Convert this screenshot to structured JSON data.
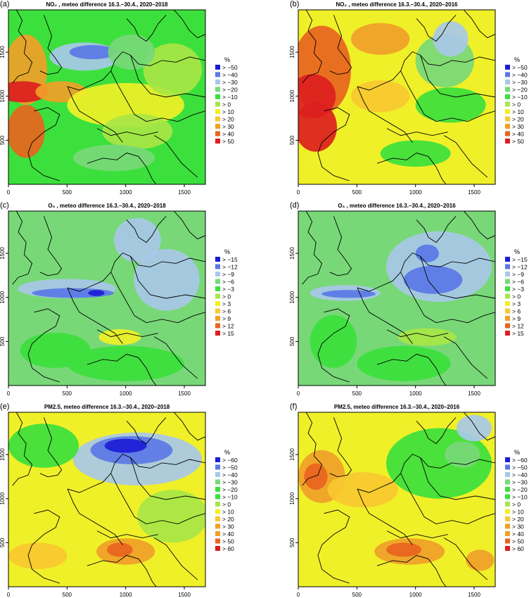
{
  "colors": {
    "neg4": "#1c1cd6",
    "neg3": "#5a78e6",
    "neg2": "#a8c8e8",
    "neg1": "#78d878",
    "neg0": "#3ce03c",
    "pos0": "#a8e646",
    "pos1": "#f0f028",
    "pos2": "#f8c830",
    "pos3": "#f0a028",
    "pos4": "#e86420",
    "pos5": "#dc1e1e",
    "coast": "#000000",
    "frame": "#000000"
  },
  "chart_data": [
    {
      "type": "heatmap",
      "panel": "(a)",
      "title": "NO₂ , meteo difference 16.3.–30.4., 2020–2018",
      "x_ticks": [
        "0",
        "500",
        "1000",
        "1500"
      ],
      "y_ticks": [
        "500",
        "1000",
        "1500"
      ],
      "xlim": [
        0,
        1680
      ],
      "ylim": [
        0,
        1980
      ],
      "legend_title": "%",
      "legend_labels": [
        "> −50",
        "> −40",
        "> −30",
        "> −20",
        "> −10",
        "> 0",
        "> 10",
        "> 20",
        "> 30",
        "> 40",
        "> 50"
      ],
      "legend_colors": [
        "neg4",
        "neg3",
        "neg2",
        "neg1",
        "neg0",
        "pos0",
        "pos1",
        "pos2",
        "pos3",
        "pos4",
        "pos5"
      ],
      "base_color": "neg0",
      "regions": [
        {
          "x": 150,
          "y": 1300,
          "rx": 180,
          "ry": 400,
          "c": "pos3"
        },
        {
          "x": 120,
          "y": 1050,
          "rx": 220,
          "ry": 120,
          "c": "pos5"
        },
        {
          "x": 150,
          "y": 600,
          "rx": 160,
          "ry": 300,
          "c": "pos4"
        },
        {
          "x": 650,
          "y": 1450,
          "rx": 300,
          "ry": 160,
          "c": "neg2"
        },
        {
          "x": 720,
          "y": 1500,
          "rx": 200,
          "ry": 80,
          "c": "neg3"
        },
        {
          "x": 450,
          "y": 1050,
          "rx": 220,
          "ry": 120,
          "c": "pos3"
        },
        {
          "x": 1000,
          "y": 900,
          "rx": 500,
          "ry": 250,
          "c": "pos1"
        },
        {
          "x": 1100,
          "y": 600,
          "rx": 300,
          "ry": 200,
          "c": "pos0"
        },
        {
          "x": 1400,
          "y": 1300,
          "rx": 250,
          "ry": 300,
          "c": "pos0"
        },
        {
          "x": 1050,
          "y": 1500,
          "rx": 200,
          "ry": 200,
          "c": "neg1"
        },
        {
          "x": 900,
          "y": 300,
          "rx": 350,
          "ry": 150,
          "c": "neg1"
        }
      ]
    },
    {
      "type": "heatmap",
      "panel": "(b)",
      "title": "NO₂ , meteo difference 16.3.–30.4., 2020–2016",
      "x_ticks": [
        "0",
        "500",
        "1000",
        "1500"
      ],
      "y_ticks": [
        "500",
        "1000",
        "1500"
      ],
      "xlim": [
        0,
        1680
      ],
      "ylim": [
        0,
        1980
      ],
      "legend_title": "%",
      "legend_labels": [
        "> −50",
        "> −40",
        "> −30",
        "> −20",
        "> −10",
        "> 0",
        "> 10",
        "> 20",
        "> 30",
        "> 40",
        "> 50"
      ],
      "legend_colors": [
        "neg4",
        "neg3",
        "neg2",
        "neg1",
        "neg0",
        "pos0",
        "pos1",
        "pos2",
        "pos3",
        "pos4",
        "pos5"
      ],
      "base_color": "pos1",
      "regions": [
        {
          "x": 200,
          "y": 1300,
          "rx": 250,
          "ry": 500,
          "c": "pos4"
        },
        {
          "x": 120,
          "y": 1000,
          "rx": 200,
          "ry": 250,
          "c": "pos5"
        },
        {
          "x": 150,
          "y": 650,
          "rx": 180,
          "ry": 280,
          "c": "pos5"
        },
        {
          "x": 700,
          "y": 1650,
          "rx": 250,
          "ry": 180,
          "c": "pos3"
        },
        {
          "x": 1250,
          "y": 1400,
          "rx": 250,
          "ry": 300,
          "c": "neg1"
        },
        {
          "x": 1300,
          "y": 1650,
          "rx": 150,
          "ry": 200,
          "c": "neg2"
        },
        {
          "x": 1300,
          "y": 900,
          "rx": 300,
          "ry": 200,
          "c": "neg0"
        },
        {
          "x": 700,
          "y": 1000,
          "rx": 250,
          "ry": 180,
          "c": "pos2"
        },
        {
          "x": 1000,
          "y": 350,
          "rx": 300,
          "ry": 150,
          "c": "neg0"
        }
      ]
    },
    {
      "type": "heatmap",
      "panel": "(c)",
      "title": "O₃ , meteo difference 16.3.–30.4., 2020–2018",
      "x_ticks": [
        "0",
        "500",
        "1000",
        "1500"
      ],
      "y_ticks": [
        "500",
        "1000",
        "1500"
      ],
      "xlim": [
        0,
        1680
      ],
      "ylim": [
        0,
        1980
      ],
      "legend_title": "%",
      "legend_labels": [
        "> −15",
        "> −12",
        "> −9",
        "> −6",
        "> −3",
        "> 0",
        "> 3",
        "> 6",
        "> 9",
        "> 12",
        "> 15"
      ],
      "legend_colors": [
        "neg4",
        "neg3",
        "neg2",
        "neg1",
        "neg0",
        "pos0",
        "pos1",
        "pos2",
        "pos3",
        "pos4",
        "pos5"
      ],
      "base_color": "neg1",
      "regions": [
        {
          "x": 500,
          "y": 1100,
          "rx": 420,
          "ry": 110,
          "c": "neg2"
        },
        {
          "x": 550,
          "y": 1050,
          "rx": 350,
          "ry": 55,
          "c": "neg3"
        },
        {
          "x": 750,
          "y": 1050,
          "rx": 70,
          "ry": 35,
          "c": "neg4"
        },
        {
          "x": 1350,
          "y": 1200,
          "rx": 280,
          "ry": 350,
          "c": "neg2"
        },
        {
          "x": 1100,
          "y": 1650,
          "rx": 200,
          "ry": 250,
          "c": "neg2"
        },
        {
          "x": 950,
          "y": 550,
          "rx": 180,
          "ry": 90,
          "c": "pos1"
        },
        {
          "x": 1000,
          "y": 250,
          "rx": 500,
          "ry": 200,
          "c": "neg0"
        },
        {
          "x": 400,
          "y": 400,
          "rx": 300,
          "ry": 200,
          "c": "neg0"
        }
      ]
    },
    {
      "type": "heatmap",
      "panel": "(d)",
      "title": "O₃ , meteo difference 16.3.–30.4., 2020–2016",
      "x_ticks": [
        "0",
        "500",
        "1000",
        "1500"
      ],
      "y_ticks": [
        "500",
        "1000",
        "1500"
      ],
      "xlim": [
        0,
        1680
      ],
      "ylim": [
        0,
        1980
      ],
      "legend_title": "%",
      "legend_labels": [
        "> −15",
        "> −12",
        "> −9",
        "> −6",
        "> −3",
        "> 0",
        "> 3",
        "> 6",
        "> 9",
        "> 12",
        "> 15"
      ],
      "legend_colors": [
        "neg4",
        "neg3",
        "neg2",
        "neg1",
        "neg0",
        "pos0",
        "pos1",
        "pos2",
        "pos3",
        "pos4",
        "pos5"
      ],
      "base_color": "neg1",
      "regions": [
        {
          "x": 1200,
          "y": 1350,
          "rx": 450,
          "ry": 400,
          "c": "neg2"
        },
        {
          "x": 1150,
          "y": 1200,
          "rx": 250,
          "ry": 160,
          "c": "neg3"
        },
        {
          "x": 1100,
          "y": 1500,
          "rx": 100,
          "ry": 100,
          "c": "neg3"
        },
        {
          "x": 400,
          "y": 1050,
          "rx": 300,
          "ry": 90,
          "c": "neg2"
        },
        {
          "x": 430,
          "y": 1040,
          "rx": 230,
          "ry": 45,
          "c": "neg3"
        },
        {
          "x": 1100,
          "y": 550,
          "rx": 250,
          "ry": 100,
          "c": "pos0"
        },
        {
          "x": 300,
          "y": 500,
          "rx": 200,
          "ry": 300,
          "c": "neg0"
        },
        {
          "x": 900,
          "y": 250,
          "rx": 400,
          "ry": 200,
          "c": "neg0"
        }
      ]
    },
    {
      "type": "heatmap",
      "panel": "(e)",
      "title": "PM2.5, meteo difference 16.3.–30.4., 2020–2018",
      "x_ticks": [
        "0",
        "500",
        "1000",
        "1500"
      ],
      "y_ticks": [
        "500",
        "1000",
        "1500"
      ],
      "xlim": [
        0,
        1680
      ],
      "ylim": [
        0,
        1980
      ],
      "legend_title": "%",
      "legend_labels": [
        "> −60",
        "> −50",
        "> −40",
        "> −30",
        "> −20",
        "> −10",
        "> 0",
        "> 10",
        "> 20",
        "> 30",
        "> 40",
        "> 50",
        "> 60"
      ],
      "legend_colors": [
        "neg4",
        "neg3",
        "neg2",
        "neg1",
        "neg0",
        "neg0",
        "pos0",
        "pos1",
        "pos2",
        "pos3",
        "pos3",
        "pos4",
        "pos5"
      ],
      "base_color": "pos1",
      "regions": [
        {
          "x": 1100,
          "y": 1450,
          "rx": 550,
          "ry": 300,
          "c": "neg2"
        },
        {
          "x": 1050,
          "y": 1550,
          "rx": 350,
          "ry": 160,
          "c": "neg3"
        },
        {
          "x": 1000,
          "y": 1600,
          "rx": 180,
          "ry": 80,
          "c": "neg4"
        },
        {
          "x": 300,
          "y": 1600,
          "rx": 300,
          "ry": 250,
          "c": "neg0"
        },
        {
          "x": 1000,
          "y": 400,
          "rx": 250,
          "ry": 150,
          "c": "pos3"
        },
        {
          "x": 950,
          "y": 420,
          "rx": 110,
          "ry": 80,
          "c": "pos4"
        },
        {
          "x": 250,
          "y": 350,
          "rx": 250,
          "ry": 150,
          "c": "pos2"
        },
        {
          "x": 1400,
          "y": 800,
          "rx": 300,
          "ry": 300,
          "c": "pos0"
        }
      ]
    },
    {
      "type": "heatmap",
      "panel": "(f)",
      "title": "PM2.5, meteo difference 16.3.–30.4., 2020–2016",
      "x_ticks": [
        "0",
        "500",
        "1000",
        "1500"
      ],
      "y_ticks": [
        "500",
        "1000",
        "1500"
      ],
      "xlim": [
        0,
        1680
      ],
      "ylim": [
        0,
        1980
      ],
      "legend_title": "%",
      "legend_labels": [
        "> −60",
        "> −50",
        "> −40",
        "> −30",
        "> −20",
        "> −10",
        "> 0",
        "> 10",
        "> 20",
        "> 30",
        "> 40",
        "> 50",
        "> 60"
      ],
      "legend_colors": [
        "neg4",
        "neg3",
        "neg2",
        "neg1",
        "neg0",
        "neg0",
        "pos0",
        "pos1",
        "pos2",
        "pos3",
        "pos3",
        "pos4",
        "pos5"
      ],
      "base_color": "pos1",
      "regions": [
        {
          "x": 200,
          "y": 1250,
          "rx": 200,
          "ry": 300,
          "c": "pos3"
        },
        {
          "x": 150,
          "y": 1250,
          "rx": 100,
          "ry": 150,
          "c": "pos4"
        },
        {
          "x": 1200,
          "y": 1400,
          "rx": 450,
          "ry": 400,
          "c": "neg0"
        },
        {
          "x": 1400,
          "y": 1500,
          "rx": 150,
          "ry": 150,
          "c": "neg1"
        },
        {
          "x": 1500,
          "y": 1800,
          "rx": 150,
          "ry": 150,
          "c": "neg2"
        },
        {
          "x": 950,
          "y": 400,
          "rx": 300,
          "ry": 150,
          "c": "pos3"
        },
        {
          "x": 900,
          "y": 420,
          "rx": 150,
          "ry": 80,
          "c": "pos4"
        },
        {
          "x": 1550,
          "y": 300,
          "rx": 120,
          "ry": 120,
          "c": "pos3"
        },
        {
          "x": 550,
          "y": 1100,
          "rx": 300,
          "ry": 200,
          "c": "pos2"
        }
      ]
    }
  ]
}
